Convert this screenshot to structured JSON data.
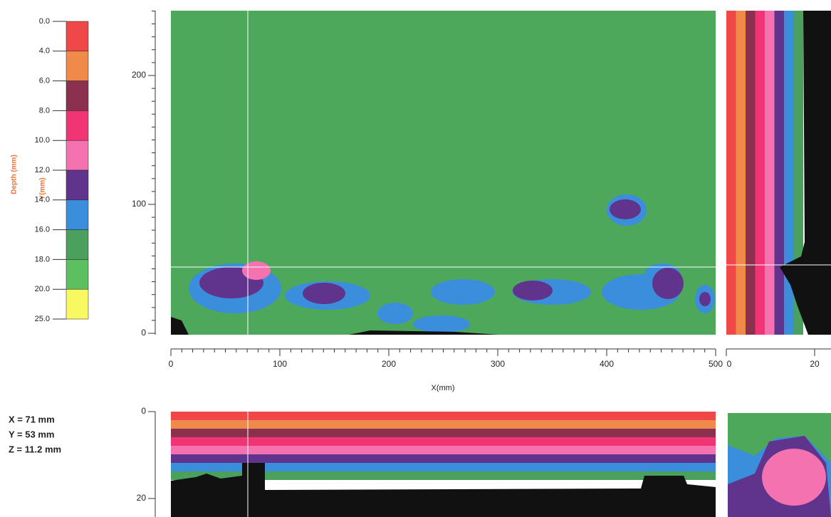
{
  "legend": {
    "title": "Depth (mm)",
    "labels": [
      "0.0",
      "4.0",
      "6.0",
      "8.0",
      "10.0",
      "12.0",
      "14.0",
      "16.0",
      "18.0",
      "20.0",
      "25.0"
    ],
    "colors": [
      "#f04848",
      "#f08a4a",
      "#8c3050",
      "#f03474",
      "#f472b0",
      "#60348c",
      "#3a8edc",
      "#4aa05c",
      "#5cc060",
      "#f8f860"
    ]
  },
  "y_label": "Y(mm)",
  "main": {
    "x_label": "X(mm)",
    "xticks": [
      0,
      100,
      200,
      300,
      400,
      500
    ],
    "yticks": [
      0,
      100,
      200
    ]
  },
  "side": {
    "xticks": [
      0,
      20
    ]
  },
  "bottom": {
    "yticks": [
      0,
      20
    ]
  },
  "readout": [
    "X = 71 mm",
    "Y = 53 mm",
    "Z = 11.2 mm"
  ]
}
